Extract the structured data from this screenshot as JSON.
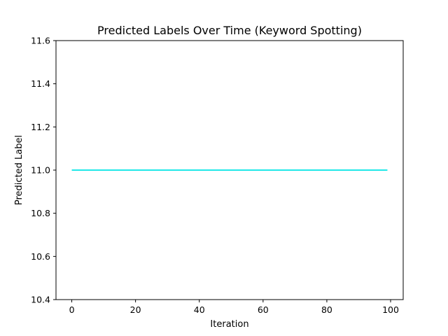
{
  "chart_data": {
    "type": "line",
    "title": "Predicted Labels Over Time (Keyword Spotting)",
    "xlabel": "Iteration",
    "ylabel": "Predicted Label",
    "xlim": [
      -4.95,
      103.95
    ],
    "ylim": [
      10.4,
      11.6
    ],
    "xticks": [
      0,
      20,
      40,
      60,
      80,
      100
    ],
    "xtick_labels": [
      "0",
      "20",
      "40",
      "60",
      "80",
      "100"
    ],
    "yticks": [
      10.4,
      10.6,
      10.8,
      11.0,
      11.2,
      11.4,
      11.6
    ],
    "ytick_labels": [
      "10.4",
      "10.6",
      "10.8",
      "11.0",
      "11.2",
      "11.4",
      "11.6"
    ],
    "grid": false,
    "legend": "none",
    "series": [
      {
        "color": "#00e5e5",
        "x_start": 0,
        "x_end": 99,
        "x_step": 1,
        "constant_value": 11.0,
        "points": [
          [
            0,
            11.0
          ],
          [
            99,
            11.0
          ]
        ]
      }
    ]
  }
}
